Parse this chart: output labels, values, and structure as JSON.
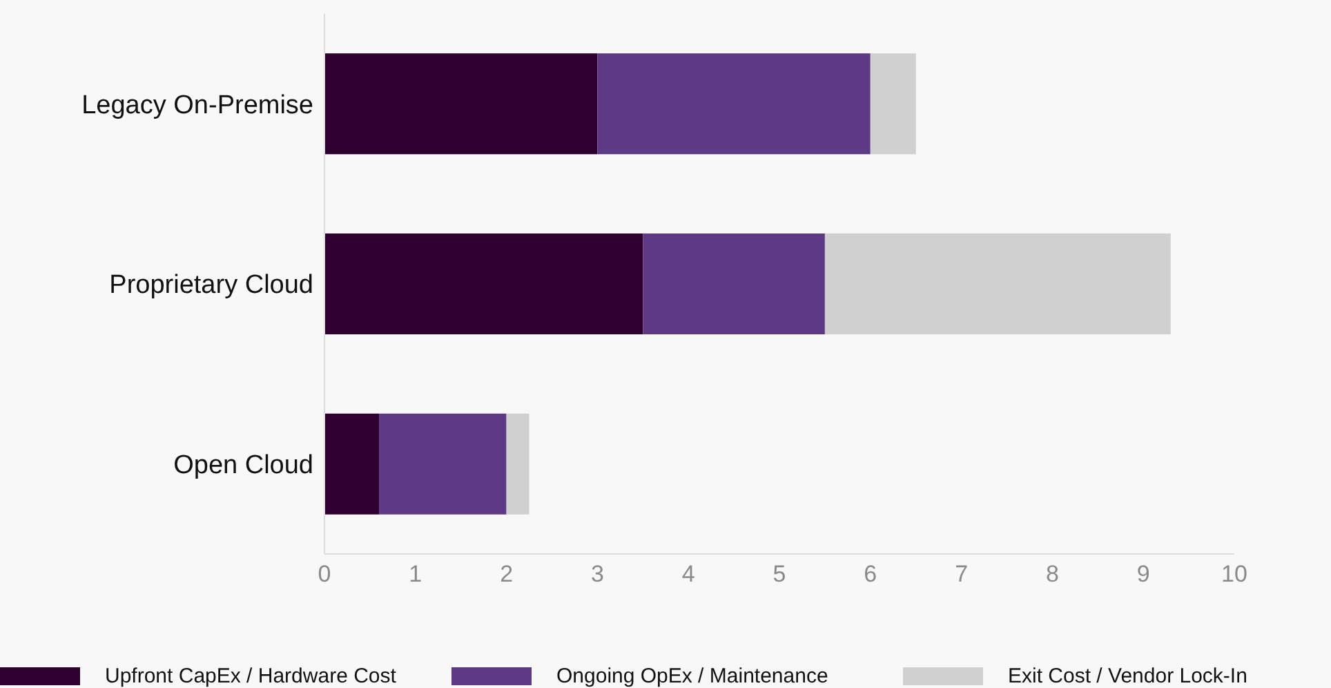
{
  "chart_data": {
    "type": "bar",
    "orientation": "horizontal",
    "stacked": true,
    "categories": [
      "Legacy On-Premise",
      "Proprietary Cloud",
      "Open Cloud"
    ],
    "series": [
      {
        "name": "Upfront CapEx / Hardware Cost",
        "color": "#2e0030",
        "values": [
          3,
          3.5,
          0.6
        ]
      },
      {
        "name": "Ongoing OpEx / Maintenance",
        "color": "#5e3a84",
        "values": [
          3,
          2,
          1.4
        ]
      },
      {
        "name": "Exit Cost / Vendor Lock-In",
        "color": "#d0d0d0",
        "values": [
          0.5,
          3.8,
          0.25
        ]
      }
    ],
    "xlim": [
      0,
      10
    ],
    "xticks": [
      0,
      1,
      2,
      3,
      4,
      5,
      6,
      7,
      8,
      9,
      10
    ],
    "grid": false,
    "legend": "bottom"
  }
}
